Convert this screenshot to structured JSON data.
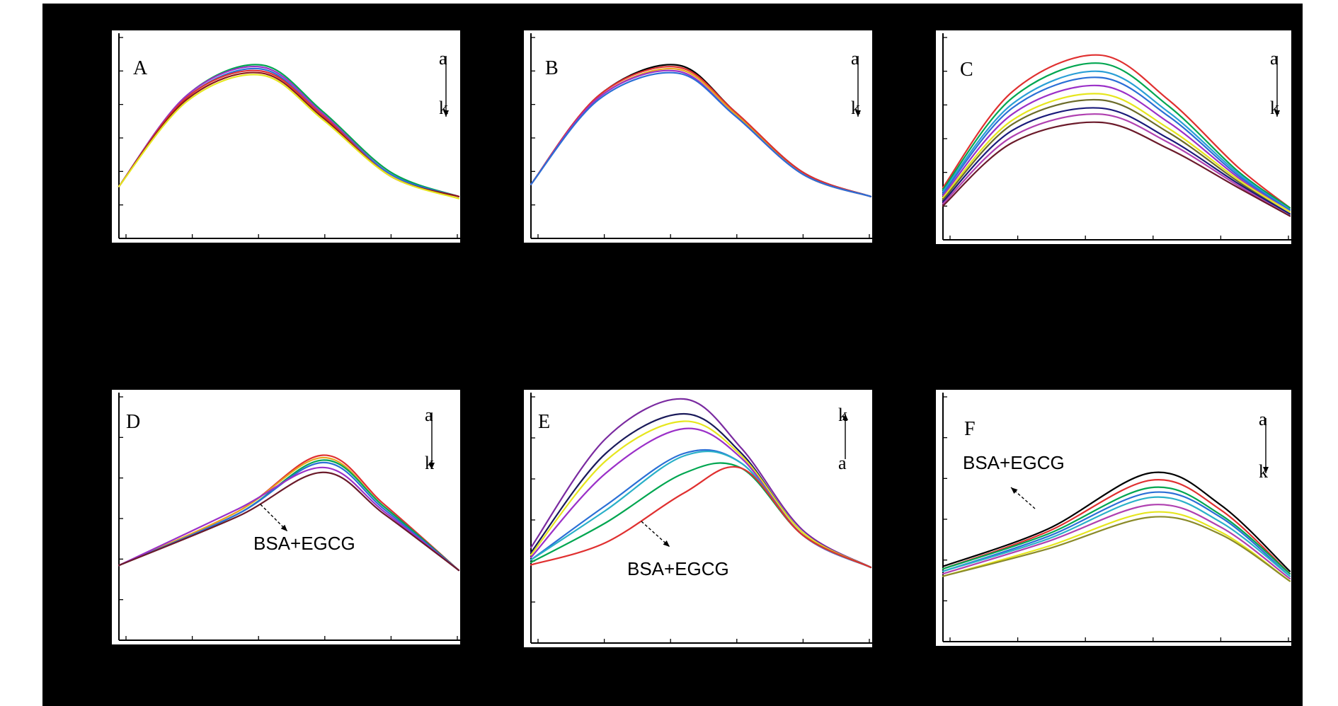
{
  "chart_data": [
    {
      "type": "line",
      "panel_label": "A",
      "series_range": {
        "start": "a",
        "end": "k",
        "direction": "down"
      },
      "annotation": "",
      "xlim": [
        0,
        100
      ],
      "ylim": [
        0,
        100
      ],
      "grid": false,
      "series": [
        {
          "color": "#00a650",
          "x": [
            0,
            20,
            42,
            60,
            80,
            100
          ],
          "values": [
            25,
            70,
            85,
            62,
            32,
            20
          ]
        },
        {
          "color": "#9b30c8",
          "x": [
            0,
            20,
            42,
            60,
            80,
            100
          ],
          "values": [
            25,
            70,
            84,
            61,
            31,
            20
          ]
        },
        {
          "color": "#2a6fd6",
          "x": [
            0,
            20,
            42,
            60,
            80,
            100
          ],
          "values": [
            25,
            69,
            83,
            60,
            31,
            20
          ]
        },
        {
          "color": "#e03030",
          "x": [
            0,
            20,
            42,
            60,
            80,
            100
          ],
          "values": [
            25,
            69,
            82,
            60,
            30,
            20
          ]
        },
        {
          "color": "#8b1a1a",
          "x": [
            0,
            20,
            42,
            60,
            80,
            100
          ],
          "values": [
            25,
            68,
            81,
            59,
            30,
            20
          ]
        },
        {
          "color": "#e6e61e",
          "x": [
            0,
            20,
            42,
            60,
            80,
            100
          ],
          "values": [
            25,
            67,
            80,
            58,
            30,
            19
          ]
        }
      ]
    },
    {
      "type": "line",
      "panel_label": "B",
      "series_range": {
        "start": "a",
        "end": "k",
        "direction": "down"
      },
      "annotation": "",
      "xlim": [
        0,
        100
      ],
      "ylim": [
        0,
        100
      ],
      "grid": false,
      "series": [
        {
          "color": "#000000",
          "x": [
            0,
            20,
            43,
            60,
            80,
            100
          ],
          "values": [
            26,
            70,
            85,
            62,
            32,
            20
          ]
        },
        {
          "color": "#e03030",
          "x": [
            0,
            20,
            43,
            60,
            80,
            100
          ],
          "values": [
            26,
            70,
            84,
            62,
            32,
            20
          ]
        },
        {
          "color": "#e6a61e",
          "x": [
            0,
            20,
            43,
            60,
            80,
            100
          ],
          "values": [
            26,
            69,
            83,
            61,
            31,
            20
          ]
        },
        {
          "color": "#9b30c8",
          "x": [
            0,
            20,
            43,
            60,
            80,
            100
          ],
          "values": [
            26,
            69,
            82,
            60,
            31,
            20
          ]
        },
        {
          "color": "#2a6fd6",
          "x": [
            0,
            20,
            43,
            60,
            80,
            100
          ],
          "values": [
            26,
            68,
            81,
            60,
            31,
            20
          ]
        }
      ]
    },
    {
      "type": "line",
      "panel_label": "C",
      "series_range": {
        "start": "a",
        "end": "k",
        "direction": "down"
      },
      "annotation": "",
      "xlim": [
        0,
        100
      ],
      "ylim": [
        0,
        100
      ],
      "grid": false,
      "series": [
        {
          "color": "#e03030",
          "x": [
            0,
            20,
            45,
            65,
            85,
            100
          ],
          "values": [
            25,
            72,
            90,
            68,
            35,
            15
          ]
        },
        {
          "color": "#00a650",
          "x": [
            0,
            20,
            45,
            65,
            85,
            100
          ],
          "values": [
            24,
            69,
            86,
            65,
            33,
            15
          ]
        },
        {
          "color": "#2a9fd6",
          "x": [
            0,
            20,
            45,
            65,
            85,
            100
          ],
          "values": [
            23,
            66,
            82,
            62,
            32,
            14
          ]
        },
        {
          "color": "#2a6fd6",
          "x": [
            0,
            20,
            45,
            65,
            85,
            100
          ],
          "values": [
            22,
            64,
            79,
            60,
            31,
            14
          ]
        },
        {
          "color": "#9b30c8",
          "x": [
            0,
            20,
            45,
            65,
            85,
            100
          ],
          "values": [
            21,
            61,
            75,
            57,
            30,
            13
          ]
        },
        {
          "color": "#e6e61e",
          "x": [
            0,
            20,
            45,
            65,
            85,
            100
          ],
          "values": [
            20,
            58,
            71,
            54,
            29,
            13
          ]
        },
        {
          "color": "#6b6b2a",
          "x": [
            0,
            20,
            45,
            65,
            85,
            100
          ],
          "values": [
            19,
            56,
            68,
            52,
            28,
            12
          ]
        },
        {
          "color": "#1a1a7a",
          "x": [
            0,
            20,
            45,
            65,
            85,
            100
          ],
          "values": [
            18,
            53,
            64,
            49,
            27,
            12
          ]
        },
        {
          "color": "#b040b0",
          "x": [
            0,
            20,
            45,
            65,
            85,
            100
          ],
          "values": [
            17,
            50,
            61,
            47,
            26,
            11
          ]
        },
        {
          "color": "#6b1a2a",
          "x": [
            0,
            20,
            45,
            65,
            85,
            100
          ],
          "values": [
            16,
            47,
            57,
            44,
            25,
            11
          ]
        }
      ]
    },
    {
      "type": "line",
      "panel_label": "D",
      "series_range": {
        "start": "a",
        "end": "k",
        "direction": "down"
      },
      "annotation": "BSA+EGCG",
      "xlim": [
        0,
        100
      ],
      "ylim": [
        0,
        100
      ],
      "grid": false,
      "series": [
        {
          "color": "#e03030",
          "x": [
            0,
            35,
            60,
            78,
            100
          ],
          "values": [
            30,
            52,
            75,
            55,
            28
          ]
        },
        {
          "color": "#e6a61e",
          "x": [
            0,
            35,
            60,
            78,
            100
          ],
          "values": [
            30,
            52,
            74,
            54,
            28
          ]
        },
        {
          "color": "#00a650",
          "x": [
            0,
            35,
            60,
            78,
            100
          ],
          "values": [
            30,
            51,
            73,
            54,
            28
          ]
        },
        {
          "color": "#2a6fd6",
          "x": [
            0,
            35,
            60,
            78,
            100
          ],
          "values": [
            30,
            51,
            72,
            53,
            28
          ]
        },
        {
          "color": "#9b30c8",
          "x": [
            0,
            35,
            60,
            78,
            100
          ],
          "values": [
            30,
            53,
            70,
            52,
            28
          ]
        },
        {
          "color": "#6b1a2a",
          "x": [
            0,
            35,
            60,
            78,
            100
          ],
          "values": [
            30,
            50,
            68,
            51,
            28
          ]
        }
      ]
    },
    {
      "type": "line",
      "panel_label": "E",
      "series_range": {
        "start": "a",
        "end": "k",
        "direction": "up"
      },
      "annotation": "BSA+EGCG",
      "xlim": [
        0,
        100
      ],
      "ylim": [
        0,
        100
      ],
      "grid": false,
      "series": [
        {
          "color": "#7a2aa0",
          "x": [
            0,
            22,
            45,
            62,
            80,
            100
          ],
          "values": [
            38,
            82,
            98,
            78,
            45,
            30
          ]
        },
        {
          "color": "#1a1a5a",
          "x": [
            0,
            22,
            45,
            62,
            80,
            100
          ],
          "values": [
            36,
            76,
            92,
            76,
            44,
            30
          ]
        },
        {
          "color": "#e6e61e",
          "x": [
            0,
            22,
            45,
            62,
            80,
            100
          ],
          "values": [
            35,
            73,
            89,
            75,
            44,
            30
          ]
        },
        {
          "color": "#9b30c8",
          "x": [
            0,
            22,
            45,
            62,
            80,
            100
          ],
          "values": [
            34,
            68,
            86,
            74,
            43,
            30
          ]
        },
        {
          "color": "#2a6fd6",
          "x": [
            0,
            22,
            45,
            62,
            80,
            100
          ],
          "values": [
            33,
            55,
            76,
            72,
            43,
            30
          ]
        },
        {
          "color": "#2ab0c8",
          "x": [
            0,
            22,
            45,
            62,
            80,
            100
          ],
          "values": [
            33,
            53,
            75,
            72,
            43,
            30
          ]
        },
        {
          "color": "#00a650",
          "x": [
            0,
            22,
            45,
            62,
            80,
            100
          ],
          "values": [
            32,
            48,
            68,
            70,
            43,
            30
          ]
        },
        {
          "color": "#e03030",
          "x": [
            0,
            22,
            45,
            62,
            80,
            100
          ],
          "values": [
            31,
            40,
            60,
            70,
            43,
            30
          ]
        }
      ]
    },
    {
      "type": "line",
      "panel_label": "F",
      "series_range": {
        "start": "a",
        "end": "k",
        "direction": "down"
      },
      "annotation": "BSA+EGCG",
      "xlim": [
        0,
        100
      ],
      "ylim": [
        0,
        100
      ],
      "grid": false,
      "series": [
        {
          "color": "#000000",
          "x": [
            0,
            30,
            60,
            80,
            100
          ],
          "values": [
            30,
            45,
            68,
            55,
            28
          ]
        },
        {
          "color": "#e03030",
          "x": [
            0,
            30,
            60,
            80,
            100
          ],
          "values": [
            29,
            44,
            65,
            53,
            27
          ]
        },
        {
          "color": "#00a650",
          "x": [
            0,
            30,
            60,
            80,
            100
          ],
          "values": [
            29,
            43,
            62,
            51,
            27
          ]
        },
        {
          "color": "#2a6fd6",
          "x": [
            0,
            30,
            60,
            80,
            100
          ],
          "values": [
            28,
            42,
            60,
            50,
            26
          ]
        },
        {
          "color": "#2ab0c8",
          "x": [
            0,
            30,
            60,
            80,
            100
          ],
          "values": [
            28,
            41,
            58,
            48,
            26
          ]
        },
        {
          "color": "#b040b0",
          "x": [
            0,
            30,
            60,
            80,
            100
          ],
          "values": [
            27,
            40,
            55,
            46,
            25
          ]
        },
        {
          "color": "#e6e61e",
          "x": [
            0,
            30,
            60,
            80,
            100
          ],
          "values": [
            26,
            38,
            52,
            44,
            24
          ]
        },
        {
          "color": "#8b8b2a",
          "x": [
            0,
            30,
            60,
            80,
            100
          ],
          "values": [
            26,
            37,
            50,
            43,
            24
          ]
        }
      ]
    }
  ]
}
